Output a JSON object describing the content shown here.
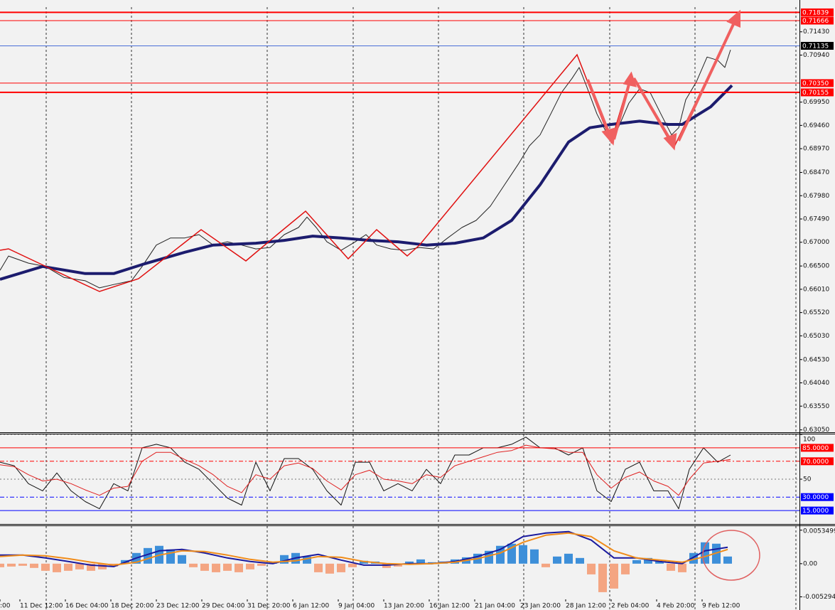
{
  "chart_data": [
    {
      "type": "line",
      "xlim": [
        0,
        281.25
      ],
      "ylim": [
        0.63,
        0.7195
      ],
      "xticks": [
        {
          "value": 0,
          "label": ":00"
        },
        {
          "value": 7,
          "label": "11 Dec 12:00"
        },
        {
          "value": 23,
          "label": "16 Dec 04:00"
        },
        {
          "value": 39,
          "label": "18 Dec 20:00"
        },
        {
          "value": 55,
          "label": "23 Dec 12:00"
        },
        {
          "value": 71,
          "label": "29 Dec 04:00"
        },
        {
          "value": 87,
          "label": "31 Dec 20:00"
        },
        {
          "value": 103,
          "label": "6 Jan 12:00"
        },
        {
          "value": 119,
          "label": "9 Jan 04:00"
        },
        {
          "value": 135,
          "label": "13 Jan 20:00"
        },
        {
          "value": 151,
          "label": "16 Jan 12:00"
        },
        {
          "value": 167,
          "label": "21 Jan 04:00"
        },
        {
          "value": 183,
          "label": "23 Jan 20:00"
        },
        {
          "value": 199,
          "label": "28 Jan 12:00"
        },
        {
          "value": 215,
          "label": "2 Feb 04:00"
        },
        {
          "value": 231,
          "label": "4 Feb 20:00"
        },
        {
          "value": 247,
          "label": "9 Feb 12:00"
        }
      ],
      "vgrid": [
        16.25,
        46.25,
        94,
        124.25,
        154.25,
        184.25,
        214.5,
        244.5,
        280
      ],
      "yticks": [
        {
          "value": 0.7143,
          "label": "0.71430"
        },
        {
          "value": 0.7094,
          "label": "0.70940"
        },
        {
          "value": 0.6995,
          "label": "0.69950"
        },
        {
          "value": 0.6946,
          "label": "0.69460"
        },
        {
          "value": 0.6897,
          "label": "0.68970"
        },
        {
          "value": 0.6847,
          "label": "0.68470"
        },
        {
          "value": 0.6798,
          "label": "0.67980"
        },
        {
          "value": 0.6749,
          "label": "0.67490"
        },
        {
          "value": 0.67,
          "label": "0.67000"
        },
        {
          "value": 0.665,
          "label": "0.66500"
        },
        {
          "value": 0.6601,
          "label": "0.66010"
        },
        {
          "value": 0.6552,
          "label": "0.65520"
        },
        {
          "value": 0.6503,
          "label": "0.65030"
        },
        {
          "value": 0.6453,
          "label": "0.64530"
        },
        {
          "value": 0.6404,
          "label": "0.64040"
        },
        {
          "value": 0.6355,
          "label": "0.63550"
        },
        {
          "value": 0.6305,
          "label": "0.63050"
        }
      ],
      "grid": false,
      "levels": [
        {
          "value": 0.71839,
          "color": "#ff0000",
          "label_color": "#ff0000",
          "line_width": 2,
          "line_style": "solid"
        },
        {
          "value": 0.71666,
          "color": "#ff0000",
          "label_color": "#ff0000",
          "line_width": 1,
          "line_style": "solid"
        },
        {
          "value": 0.71135,
          "color": "#4a6fd8",
          "label_color": "#000000",
          "line_width": 1,
          "line_style": "solid"
        },
        {
          "value": 0.7035,
          "label": "0.70350",
          "color": "#ff0000",
          "label_color": "#ff0000",
          "line_width": 1,
          "line_style": "solid"
        },
        {
          "value": 0.70155,
          "color": "#ff0000",
          "label_color": "#ff0000",
          "line_width": 2,
          "line_style": "solid"
        }
      ],
      "series": [
        {
          "color": "#222222",
          "line_width": 1,
          "x": [
            0,
            3,
            10,
            16,
            22.5,
            30,
            35,
            40,
            46.25,
            50,
            55,
            60,
            65,
            70,
            75,
            80,
            85,
            90,
            95,
            100,
            105,
            108,
            111.25,
            115,
            120,
            125,
            128.75,
            132.5,
            137.5,
            142.5,
            147.5,
            152.5,
            157.5,
            162.5,
            167.5,
            172.5,
            177.5,
            182.5,
            186.25,
            190,
            193.75,
            197.5,
            201.25,
            203.75,
            206.25,
            210,
            213.75,
            217.5,
            221.25,
            225,
            228.75,
            232.5,
            236.25,
            238.75,
            241.25,
            245,
            248.75,
            252.5,
            255,
            257
          ],
          "values": [
            0.6641,
            0.6671,
            0.6656,
            0.6649,
            0.6626,
            0.6619,
            0.6604,
            0.6611,
            0.6619,
            0.6649,
            0.6694,
            0.6709,
            0.6709,
            0.6716,
            0.6694,
            0.6701,
            0.6694,
            0.6686,
            0.6689,
            0.6716,
            0.6731,
            0.6753,
            0.6731,
            0.6701,
            0.6683,
            0.6701,
            0.6716,
            0.6694,
            0.6686,
            0.6683,
            0.6689,
            0.6686,
            0.6709,
            0.6731,
            0.6746,
            0.6776,
            0.6821,
            0.6866,
            0.6903,
            0.6926,
            0.697,
            0.7015,
            0.7045,
            0.7068,
            0.703,
            0.697,
            0.6926,
            0.6941,
            0.6993,
            0.7023,
            0.7015,
            0.697,
            0.6926,
            0.6941,
            0.7,
            0.7038,
            0.709,
            0.7083,
            0.7068,
            0.7105
          ]
        },
        {
          "color": "#1c1c6e",
          "line_width": 4,
          "x": [
            0,
            15,
            30,
            40,
            50,
            65,
            75,
            90,
            100,
            110,
            120,
            130,
            140,
            150,
            160,
            170,
            180,
            190,
            200,
            207.5,
            215,
            225,
            235,
            240,
            250,
            257.5
          ],
          "values": [
            0.6622,
            0.6649,
            0.6634,
            0.6634,
            0.6653,
            0.6679,
            0.6694,
            0.6698,
            0.6704,
            0.6713,
            0.6709,
            0.6704,
            0.6701,
            0.6694,
            0.6698,
            0.6709,
            0.6746,
            0.6821,
            0.6911,
            0.6941,
            0.6948,
            0.6955,
            0.6948,
            0.6948,
            0.6985,
            0.703
          ]
        }
      ]
    },
    {
      "type": "line",
      "ylim": [
        0,
        100
      ],
      "yticks": [
        100,
        50
      ],
      "grid": true,
      "levels": [
        {
          "value": 85,
          "label": "85.0000",
          "color": "#ff0000",
          "label_color": "#ff0000",
          "line_width": 1,
          "line_style": "solid"
        },
        {
          "value": 70,
          "label": "70.0000",
          "color": "#ff0000",
          "label_color": "#ff0000",
          "line_width": 1,
          "line_style": "dashdot"
        },
        {
          "value": 30,
          "label": "30.0000",
          "color": "#0000ff",
          "label_color": "#0000ff",
          "line_width": 1,
          "line_style": "dashdot"
        },
        {
          "value": 15,
          "label": "15.0000",
          "color": "#0000ff",
          "label_color": "#0000ff",
          "line_width": 1,
          "line_style": "solid"
        }
      ],
      "series": [
        {
          "color": "#111111",
          "line_width": 1,
          "x": [
            0,
            5,
            10,
            15,
            20,
            25,
            30,
            35,
            40,
            45,
            50,
            55,
            60,
            65,
            70,
            75,
            80,
            85,
            90,
            95,
            100,
            105,
            110,
            115,
            120,
            125,
            130,
            135,
            140,
            145,
            150,
            155,
            160,
            165,
            170,
            175,
            180,
            185,
            190,
            195,
            200,
            205,
            210,
            215,
            220,
            225,
            230,
            235,
            238.75,
            242.5,
            247.5,
            252.5,
            257
          ],
          "values": [
            69,
            65,
            45,
            37,
            57,
            37,
            25,
            17,
            45,
            37,
            85,
            89,
            85,
            69,
            61,
            45,
            29,
            21,
            69,
            37,
            73,
            73,
            61,
            37,
            21,
            69,
            69,
            37,
            45,
            37,
            61,
            45,
            77,
            77,
            85,
            85,
            89,
            97,
            85,
            85,
            77,
            85,
            37,
            25,
            61,
            69,
            37,
            37,
            17,
            61,
            85,
            69,
            77
          ]
        },
        {
          "color": "#e02020",
          "line_width": 1,
          "x": [
            0,
            5,
            10,
            15,
            20,
            25,
            30,
            35,
            40,
            45,
            50,
            55,
            60,
            65,
            70,
            75,
            80,
            85,
            90,
            95,
            100,
            105,
            110,
            115,
            120,
            125,
            130,
            135,
            140,
            145,
            150,
            155,
            160,
            165,
            170,
            175,
            180,
            185,
            190,
            195,
            200,
            205,
            210,
            215,
            220,
            225,
            230,
            235,
            238.75,
            242.5,
            247.5,
            252.5,
            257
          ],
          "values": [
            66,
            64,
            55,
            48,
            50,
            45,
            38,
            32,
            40,
            42,
            70,
            80,
            80,
            72,
            65,
            55,
            42,
            35,
            55,
            50,
            65,
            68,
            62,
            48,
            38,
            55,
            60,
            50,
            48,
            45,
            55,
            52,
            65,
            70,
            75,
            80,
            82,
            88,
            85,
            84,
            80,
            80,
            55,
            40,
            52,
            58,
            48,
            42,
            32,
            50,
            68,
            70,
            72
          ]
        }
      ]
    },
    {
      "type": "bar",
      "ylim": [
        -0.0074,
        0.006
      ],
      "yticks": [
        0.0053499,
        {
          "value": 0,
          "label": "0.00"
        },
        -0.005294
      ],
      "grid": false,
      "color": "#3d8fd9",
      "negative_color": "#f4a582",
      "x": [
        0,
        4,
        8,
        12,
        16,
        20,
        24,
        28,
        32,
        36,
        40,
        44,
        48,
        52,
        56,
        60,
        64,
        68,
        72,
        76,
        80,
        84,
        88,
        92,
        96,
        100,
        104,
        108,
        112,
        116,
        120,
        124,
        128,
        132,
        136,
        140,
        144,
        148,
        152,
        156,
        160,
        164,
        168,
        172,
        176,
        180,
        184,
        188,
        192,
        196,
        200,
        204,
        208,
        212,
        216,
        220,
        224,
        228,
        232,
        236,
        240,
        244,
        248,
        252,
        256
      ],
      "values": [
        -0.00057,
        -0.00046,
        -0.00034,
        -0.00068,
        -0.00114,
        -0.00137,
        -0.00114,
        -0.00091,
        -0.00114,
        -0.00091,
        -0.00046,
        0.00057,
        0.00171,
        0.0025,
        0.00285,
        0.00228,
        0.00137,
        -0.00057,
        -0.00114,
        -0.00137,
        -0.00114,
        -0.00137,
        -0.00091,
        -0.00034,
        0.00023,
        0.00137,
        0.00171,
        0.00114,
        -0.00137,
        -0.00159,
        -0.00137,
        -0.00057,
        0.00046,
        0.00034,
        -0.00068,
        -0.00046,
        0.00034,
        0.00068,
        0.00023,
        0.00034,
        0.00068,
        0.00102,
        0.00159,
        0.00205,
        0.00285,
        0.00319,
        0.00296,
        0.00228,
        -0.00057,
        0.00114,
        0.00159,
        0.00091,
        -0.00171,
        -0.00455,
        -0.00398,
        -0.00171,
        0.00057,
        0.00091,
        0.00034,
        -0.00114,
        -0.00137,
        0.00171,
        0.00341,
        0.00319,
        0.00114
      ],
      "series": [
        {
          "color": "#1a1a9e",
          "line_width": 2,
          "x": [
            0,
            8,
            16,
            24,
            32,
            40,
            48,
            56,
            64,
            72,
            80,
            88,
            96,
            104,
            112,
            120,
            128,
            136,
            144,
            152,
            160,
            168,
            176,
            184,
            192,
            200,
            208,
            216,
            224,
            232,
            240,
            248,
            256
          ],
          "values": [
            0.00137,
            0.00137,
            0.00091,
            0.00034,
            -0.00023,
            -0.00046,
            0.00091,
            0.00205,
            0.00228,
            0.00171,
            0.00091,
            0.00034,
            0,
            0.00091,
            0.00148,
            0.00057,
            -0.00023,
            -0.00023,
            0,
            0,
            0.00034,
            0.00114,
            0.00228,
            0.00432,
            0.00489,
            0.00512,
            0.00376,
            0.00091,
            0.00091,
            0.00034,
            0,
            0.00205,
            0.00262
          ]
        },
        {
          "color": "#f08c1a",
          "line_width": 2,
          "x": [
            0,
            8,
            16,
            24,
            32,
            40,
            48,
            56,
            64,
            72,
            80,
            88,
            96,
            104,
            112,
            120,
            128,
            136,
            144,
            152,
            160,
            168,
            176,
            184,
            192,
            200,
            208,
            216,
            224,
            232,
            240,
            248,
            256
          ],
          "values": [
            0.00114,
            0.00137,
            0.00125,
            0.0008,
            0.00023,
            -0.00023,
            0.00023,
            0.00137,
            0.00205,
            0.00193,
            0.00137,
            0.00068,
            0.00023,
            0.00046,
            0.00114,
            0.00102,
            0.00034,
            0,
            -0.00011,
            0,
            0.00023,
            0.0008,
            0.00171,
            0.00341,
            0.00455,
            0.00489,
            0.00432,
            0.00205,
            0.00091,
            0.00057,
            0.00023,
            0.00114,
            0.00228
          ]
        }
      ]
    }
  ]
}
